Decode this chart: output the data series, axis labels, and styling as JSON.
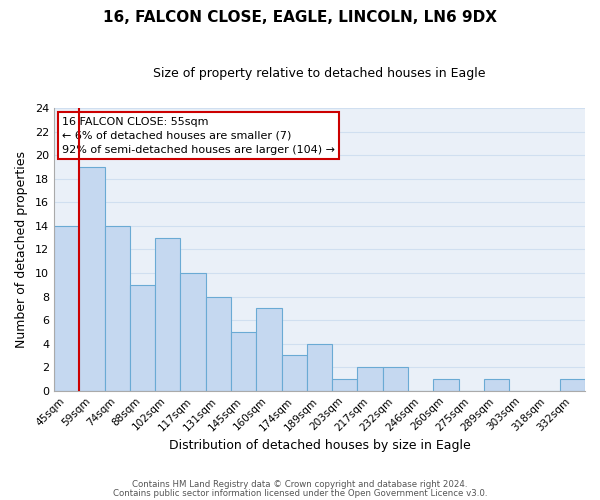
{
  "title": "16, FALCON CLOSE, EAGLE, LINCOLN, LN6 9DX",
  "subtitle": "Size of property relative to detached houses in Eagle",
  "xlabel": "Distribution of detached houses by size in Eagle",
  "ylabel": "Number of detached properties",
  "bar_color": "#c5d8f0",
  "bar_edge_color": "#6aaad4",
  "bins": [
    "45sqm",
    "59sqm",
    "74sqm",
    "88sqm",
    "102sqm",
    "117sqm",
    "131sqm",
    "145sqm",
    "160sqm",
    "174sqm",
    "189sqm",
    "203sqm",
    "217sqm",
    "232sqm",
    "246sqm",
    "260sqm",
    "275sqm",
    "289sqm",
    "303sqm",
    "318sqm",
    "332sqm"
  ],
  "counts": [
    14,
    19,
    14,
    9,
    13,
    10,
    8,
    5,
    7,
    3,
    4,
    1,
    2,
    2,
    0,
    1,
    0,
    1,
    0,
    0,
    1
  ],
  "ylim": [
    0,
    24
  ],
  "yticks": [
    0,
    2,
    4,
    6,
    8,
    10,
    12,
    14,
    16,
    18,
    20,
    22,
    24
  ],
  "marker_label_line1": "16 FALCON CLOSE: 55sqm",
  "marker_label_line2": "← 6% of detached houses are smaller (7)",
  "marker_label_line3": "92% of semi-detached houses are larger (104) →",
  "marker_line_color": "#cc0000",
  "box_edge_color": "#cc0000",
  "footer_line1": "Contains HM Land Registry data © Crown copyright and database right 2024.",
  "footer_line2": "Contains public sector information licensed under the Open Government Licence v3.0.",
  "grid_color": "#d0dff0",
  "background_color": "#eaf0f8"
}
